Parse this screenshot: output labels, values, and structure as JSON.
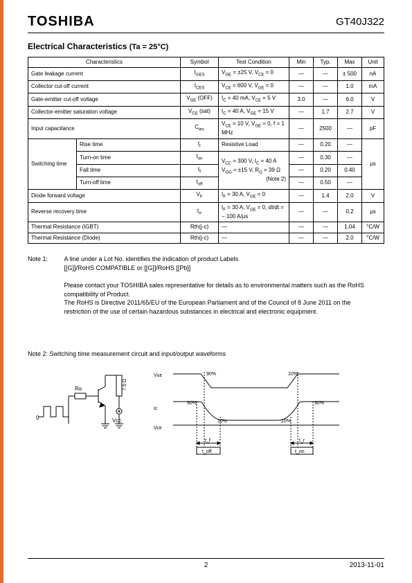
{
  "accent_color": "#e96b28",
  "header": {
    "logo": "TOSHIBA",
    "part_number": "GT40J322"
  },
  "section": {
    "title": "Electrical Characteristics",
    "condition": "(Ta = 25°C)"
  },
  "table": {
    "headers": [
      "Characteristics",
      "Symbol",
      "Test Condition",
      "Min",
      "Typ.",
      "Max",
      "Unit"
    ],
    "rows": [
      {
        "char": "Gate leakage current",
        "sym": "I_GES",
        "test": "V_GE = ±25 V, V_CE = 0",
        "min": "—",
        "typ": "—",
        "max": "± 500",
        "unit": "nA"
      },
      {
        "char": "Collector cut-off current",
        "sym": "I_CES",
        "test": "V_CE = 600 V, V_GE = 0",
        "min": "—",
        "typ": "—",
        "max": "1.0",
        "unit": "mA"
      },
      {
        "char": "Gate-emitter cut-off voltage",
        "sym": "V_GE (OFF)",
        "test": "I_C = 40 mA, V_CE = 5 V",
        "min": "3.0",
        "typ": "—",
        "max": "6.0",
        "unit": "V"
      },
      {
        "char": "Collector-emitter saturation voltage",
        "sym": "V_CE (sat)",
        "test": "I_C = 40 A, V_GE = 15 V",
        "min": "—",
        "typ": "1.7",
        "max": "2.7",
        "unit": "V"
      },
      {
        "char": "Input capacitance",
        "sym": "C_ies",
        "test": "V_CE = 10 V, V_GE = 0, f = 1 MHz",
        "min": "—",
        "typ": "2500",
        "max": "—",
        "unit": "pF"
      }
    ],
    "switching": {
      "group_label": "Switching time",
      "test_line1": "V_CC = 300 V, I_C = 40 A",
      "test_line2": "V_GG = ±15 V, R_G = 39 Ω",
      "test_note": "(Note  2)",
      "unit": "μs",
      "sub": [
        {
          "label": "Rise time",
          "sym": "t_r",
          "test": "Resistive Load",
          "min": "—",
          "typ": "0.20",
          "max": "—"
        },
        {
          "label": "Turn-on time",
          "sym": "t_on",
          "min": "—",
          "typ": "0.30",
          "max": "—"
        },
        {
          "label": "Fall time",
          "sym": "t_f",
          "min": "—",
          "typ": "0.20",
          "max": "0.40"
        },
        {
          "label": "Turn-off time",
          "sym": "t_off",
          "min": "—",
          "typ": "0.50",
          "max": "—"
        }
      ]
    },
    "rows2": [
      {
        "char": "Diode forward voltage",
        "sym": "V_F",
        "test": "I_F = 30 A, V_GE = 0",
        "min": "—",
        "typ": "1.4",
        "max": "2.0",
        "unit": "V"
      },
      {
        "char": "Reverse recovery time",
        "sym": "t_rr",
        "test": "I_F = 30 A, V_GE = 0, dI/dt = − 100 A/μs",
        "min": "—",
        "typ": "—",
        "max": "0.2",
        "unit": "μs"
      },
      {
        "char": "Thermal Resistance   (IGBT)",
        "sym": "Rth(j-c)",
        "test": "—",
        "min": "—",
        "typ": "—",
        "max": "1.04",
        "unit": "°C/W"
      },
      {
        "char": "Thermal Resistance   (Diode)",
        "sym": "Rth(j-c)",
        "test": "—",
        "min": "—",
        "typ": "—",
        "max": "2.0",
        "unit": "°C/W"
      }
    ]
  },
  "note1": {
    "label": "Note 1:",
    "line1": "A line under a Lot No. identifies the indication of product Labels",
    "line2": "[[G]]/RoHS COMPATIBLE or [[G]]/RoHS [[Pb]]",
    "para1": "Please contact your TOSHIBA sales representative for details as to environmental matters such as the RoHS compatibility of Product.",
    "para2": "The RoHS is Directive 2011/65/EU of the European Parliament and of the Council of 8 June 2011 on the restriction of the use of certain hazardous substances in electrical and electronic equipment."
  },
  "note2": {
    "label": "Note 2:",
    "text": "Switching time measurement circuit and input/output waveforms"
  },
  "circuit": {
    "labels": {
      "rg": "R_G",
      "vcc": "V_CC",
      "load": "7.5 Ω",
      "zero": "0"
    }
  },
  "waveform": {
    "vge": "V_GE",
    "ic": "I_C",
    "vce": "V_CE",
    "p90": "90%",
    "p10": "10%",
    "tf": "t_f",
    "toff": "t_off",
    "tr": "t_r",
    "ton": "t_on"
  },
  "footer": {
    "page": "2",
    "date": "2013-11-01"
  }
}
